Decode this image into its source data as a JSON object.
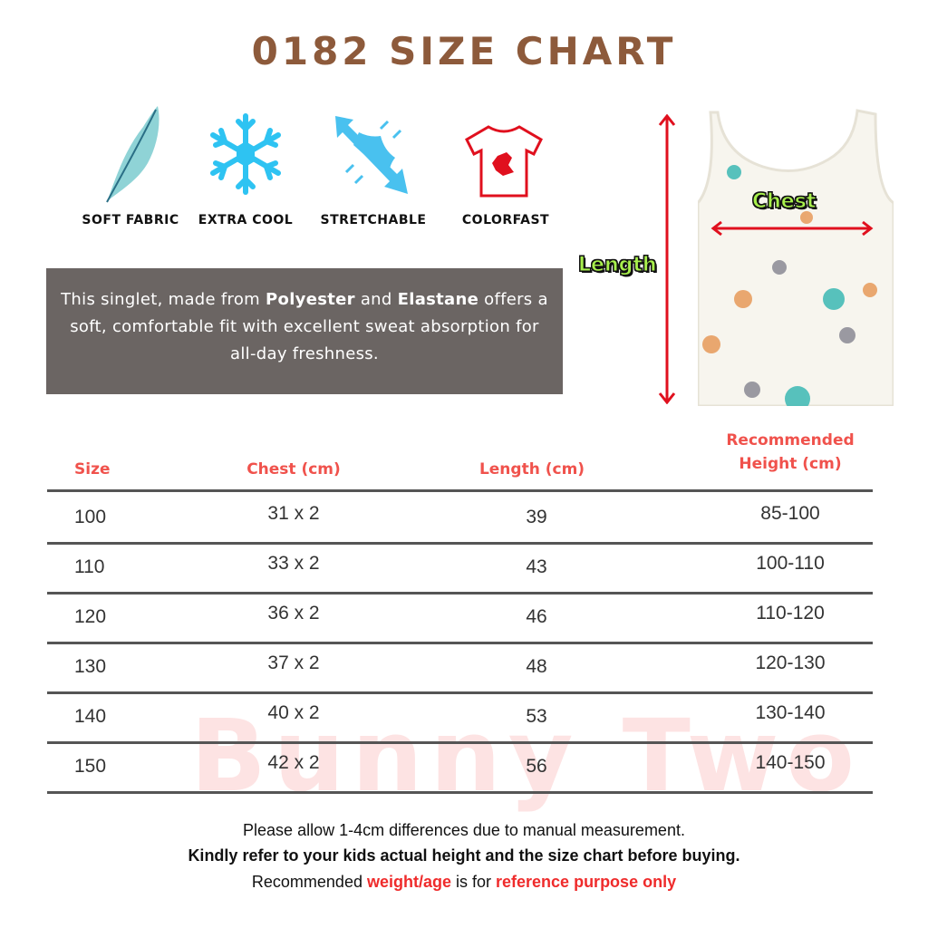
{
  "title": "0182 SIZE CHART",
  "features": [
    {
      "label": "SOFT FABRIC",
      "icon": "feather-icon"
    },
    {
      "label": "EXTRA COOL",
      "icon": "snowflake-icon"
    },
    {
      "label": "STRETCHABLE",
      "icon": "stretch-arrows-icon"
    },
    {
      "label": "COLORFAST",
      "icon": "tshirt-stain-icon"
    }
  ],
  "description": {
    "p1": "This singlet, made from ",
    "b1": "Polyester",
    "p2": " and ",
    "b2": "Elastane",
    "p3": " offers a soft, comfortable fit with excellent sweat absorption for all-day freshness."
  },
  "diagram": {
    "chest_label": "Chest",
    "length_label": "Length"
  },
  "table": {
    "headers": [
      "Size",
      "Chest (cm)",
      "Length (cm)",
      "Recommended",
      "Height (cm)"
    ],
    "rows": [
      [
        "100",
        "31 x 2",
        "39",
        "85-100"
      ],
      [
        "110",
        "33 x 2",
        "43",
        "100-110"
      ],
      [
        "120",
        "36 x 2",
        "46",
        "110-120"
      ],
      [
        "130",
        "37 x 2",
        "48",
        "120-130"
      ],
      [
        "140",
        "40 x 2",
        "53",
        "130-140"
      ],
      [
        "150",
        "42 x 2",
        "56",
        "140-150"
      ]
    ]
  },
  "footer": {
    "line1": "Please allow 1-4cm differences due to manual measurement.",
    "line2": "Kindly refer to your kids actual height and the size chart before buying.",
    "line3_a": "Recommended ",
    "line3_b": "weight/age",
    "line3_c": " is for ",
    "line3_d": "reference purpose only"
  },
  "watermark": "Bunny Two",
  "colors": {
    "title": "#8d5a3b",
    "header": "#f0524c",
    "accent_red": "#ef2b2b",
    "box": "#6b6563",
    "label_green": "#a8f04c"
  }
}
